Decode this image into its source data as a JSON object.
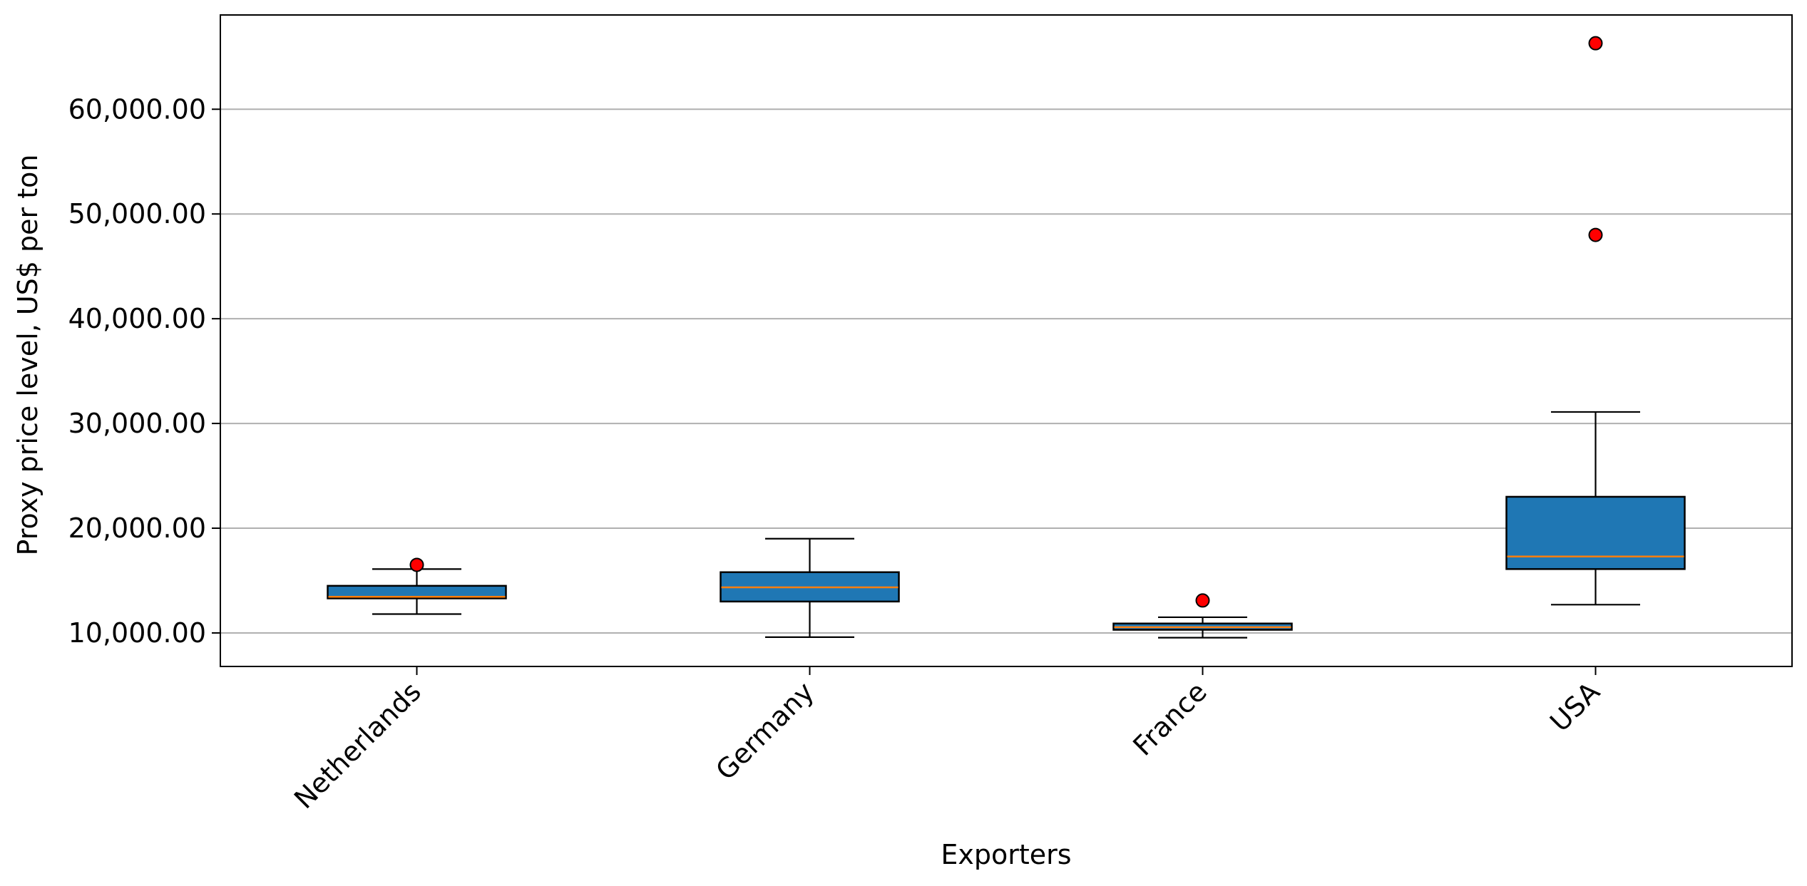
{
  "chart_data": {
    "type": "box",
    "title": "",
    "xlabel": "Exporters",
    "ylabel": "Proxy price level, US$ per ton",
    "categories": [
      "Netherlands",
      "Germany",
      "France",
      "USA"
    ],
    "ylim": [
      6800,
      69000
    ],
    "yticks": [
      10000,
      20000,
      30000,
      40000,
      50000,
      60000
    ],
    "ytick_labels": [
      "10,000.00",
      "20,000.00",
      "30,000.00",
      "40,000.00",
      "50,000.00",
      "60,000.00"
    ],
    "grid": "y",
    "boxes": [
      {
        "category": "Netherlands",
        "whislo": 11800,
        "q1": 13300,
        "med": 13450,
        "q3": 14500,
        "whishi": 16100,
        "fliers": [
          16500
        ]
      },
      {
        "category": "Germany",
        "whislo": 9600,
        "q1": 13000,
        "med": 14350,
        "q3": 15800,
        "whishi": 19000,
        "fliers": []
      },
      {
        "category": "France",
        "whislo": 9550,
        "q1": 10300,
        "med": 10550,
        "q3": 10900,
        "whishi": 11500,
        "fliers": [
          13100
        ]
      },
      {
        "category": "USA",
        "whislo": 12700,
        "q1": 16100,
        "med": 17300,
        "q3": 23000,
        "whishi": 31100,
        "fliers": [
          48000,
          66300
        ]
      }
    ],
    "colors": {
      "box_fill": "#1f77b4",
      "median": "#ff7f0e",
      "flier_fill": "#ff0000",
      "grid": "#b0b0b0"
    }
  }
}
